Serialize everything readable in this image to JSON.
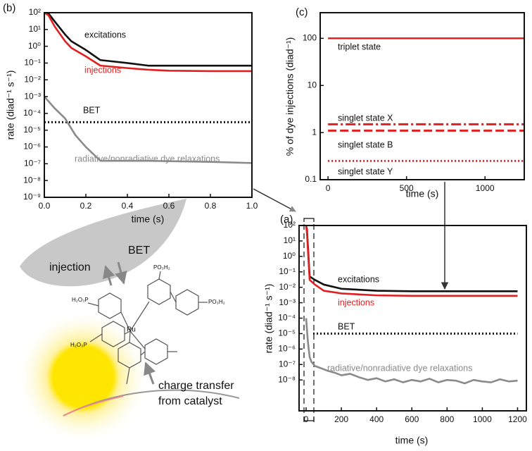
{
  "chart_data": [
    {
      "type": "line",
      "panel_label": "(b)",
      "x_label": "time (s)",
      "y_label": "rate (diad⁻¹ s⁻¹)",
      "log_y": true,
      "xlim": [
        0,
        1
      ],
      "xticks": [
        {
          "value": 0,
          "label": "0.0"
        },
        0.2,
        0.4,
        0.6,
        0.8,
        {
          "value": 1,
          "label": "1.0"
        }
      ],
      "ylim": [
        1e-09,
        100
      ],
      "yticks": [
        {
          "value": 100,
          "label": "10²"
        },
        {
          "value": 10,
          "label": "10¹"
        },
        {
          "value": 1,
          "label": "10⁰"
        },
        {
          "value": 0.1,
          "label": "10⁻¹"
        },
        {
          "value": 0.01,
          "label": "10⁻²"
        },
        {
          "value": 0.001,
          "label": "10⁻³"
        },
        {
          "value": 0.0001,
          "label": "10⁻⁴"
        },
        {
          "value": 1e-05,
          "label": "10⁻⁵"
        },
        {
          "value": 1e-06,
          "label": "10⁻⁶"
        },
        {
          "value": 1e-07,
          "label": "10⁻⁷"
        },
        {
          "value": 1e-08,
          "label": "10⁻⁸"
        },
        {
          "value": 1e-09,
          "label": "10⁻⁹"
        }
      ],
      "series": [
        {
          "name": "excitations",
          "color": "#111111",
          "dash": "solid",
          "x": [
            0,
            0.02,
            0.05,
            0.1,
            0.13,
            0.2,
            0.27,
            0.4,
            0.5,
            0.6,
            0.8,
            1.0
          ],
          "values": [
            100,
            90,
            30,
            5,
            2,
            0.6,
            0.15,
            0.1,
            0.07,
            0.07,
            0.07,
            0.07
          ]
        },
        {
          "name": "injections",
          "color": "#e02020",
          "dash": "solid",
          "x": [
            0,
            0.02,
            0.05,
            0.1,
            0.13,
            0.2,
            0.27,
            0.4,
            0.5,
            0.6,
            0.8,
            1.0
          ],
          "values": [
            100,
            70,
            15,
            2,
            0.8,
            0.25,
            0.07,
            0.05,
            0.04,
            0.035,
            0.033,
            0.033
          ]
        },
        {
          "name": "BET",
          "color": "#111111",
          "dash": "dotted",
          "x": [
            0,
            1
          ],
          "values": [
            3e-05,
            3e-05
          ]
        },
        {
          "name": "radiative/nonradiative dye relaxations",
          "color": "#8a8a8a",
          "dash": "solid",
          "x": [
            0,
            0.05,
            0.1,
            0.15,
            0.2,
            0.27,
            0.5,
            0.8,
            1.0
          ],
          "values": [
            0.001,
            0.0002,
            5e-05,
            5e-06,
            1e-06,
            1.5e-07,
            1.5e-07,
            1.3e-07,
            1.1e-07
          ]
        }
      ]
    },
    {
      "type": "line",
      "panel_label": "(c)",
      "x_label": "time (s)",
      "y_label": "% of dye injections (diad⁻¹)",
      "log_y": true,
      "xlim": [
        -50,
        1250
      ],
      "xticks": [
        0,
        500,
        1000
      ],
      "ylim": [
        0.1,
        350
      ],
      "yticks": [
        0.1,
        1,
        10,
        100
      ],
      "series": [
        {
          "name": "triplet state",
          "color": "#e02020",
          "dash": "solid",
          "x": [
            0,
            1250
          ],
          "values": [
            100,
            100
          ]
        },
        {
          "name": "singlet state X",
          "color": "#e02020",
          "dash": "dashdot",
          "x": [
            0,
            1250
          ],
          "values": [
            1.5,
            1.5
          ]
        },
        {
          "name": "singlet state B",
          "color": "#e02020",
          "dash": "dashed",
          "x": [
            0,
            1250
          ],
          "values": [
            1.1,
            1.1
          ]
        },
        {
          "name": "singlet state Y",
          "color": "#e02020",
          "dash": "dotted",
          "x": [
            0,
            1250
          ],
          "values": [
            0.25,
            0.25
          ]
        }
      ]
    },
    {
      "type": "line",
      "panel_label": "(a)",
      "x_label": "time (s)",
      "y_label": "rate (diad⁻¹ s⁻¹)",
      "log_y": true,
      "xlim": [
        -40,
        1250
      ],
      "xticks": [
        0,
        200,
        400,
        600,
        800,
        1000,
        1200
      ],
      "ylim": [
        1e-10,
        100
      ],
      "yticks": [
        {
          "value": 100,
          "label": "10²"
        },
        {
          "value": 10,
          "label": "10¹"
        },
        {
          "value": 1,
          "label": "10⁰"
        },
        {
          "value": 0.1,
          "label": "10⁻¹"
        },
        {
          "value": 0.01,
          "label": "10⁻²"
        },
        {
          "value": 0.001,
          "label": "10⁻³"
        },
        {
          "value": 0.0001,
          "label": "10⁻⁴"
        },
        {
          "value": 1e-05,
          "label": "10⁻⁵"
        },
        {
          "value": 1e-06,
          "label": "10⁻⁶"
        },
        {
          "value": 1e-07,
          "label": "10⁻⁷"
        },
        {
          "value": 1e-08,
          "label": "10⁻⁸"
        }
      ],
      "series": [
        {
          "name": "excitations",
          "color": "#111111",
          "dash": "solid",
          "x": [
            0,
            5,
            20,
            50,
            100,
            200,
            400,
            600,
            800,
            1000,
            1200
          ],
          "values": [
            100,
            50,
            0.05,
            0.03,
            0.015,
            0.008,
            0.006,
            0.0055,
            0.0055,
            0.0055,
            0.0055
          ]
        },
        {
          "name": "injections",
          "color": "#e02020",
          "dash": "solid",
          "x": [
            0,
            5,
            20,
            50,
            100,
            200,
            400,
            600,
            800,
            1000,
            1200
          ],
          "values": [
            100,
            30,
            0.03,
            0.015,
            0.006,
            0.004,
            0.003,
            0.0028,
            0.0028,
            0.0028,
            0.0028
          ]
        },
        {
          "name": "BET",
          "color": "#111111",
          "dash": "dotted",
          "x": [
            40,
            1200
          ],
          "values": [
            1e-05,
            1e-05
          ]
        },
        {
          "name": "radiative/nonradiative dye relaxations",
          "color": "#8a8a8a",
          "dash": "solid",
          "x": [
            0,
            10,
            20,
            30,
            50,
            80,
            120,
            160,
            200,
            250,
            300,
            350,
            400,
            450,
            500,
            550,
            600,
            650,
            700,
            750,
            800,
            850,
            900,
            950,
            1000,
            1050,
            1100,
            1150,
            1200
          ],
          "values": [
            0.0001,
            3e-06,
            3e-07,
            1.5e-07,
            8e-08,
            6e-08,
            4e-08,
            3e-08,
            2e-08,
            2.5e-08,
            1.5e-08,
            1e-08,
            1.3e-08,
            8e-09,
            1.1e-08,
            7e-09,
            1e-08,
            8e-09,
            1.2e-08,
            7e-09,
            1e-08,
            9e-09,
            6e-09,
            1e-08,
            8e-09,
            7e-09,
            1.1e-08,
            8e-09,
            9e-09
          ]
        }
      ]
    }
  ],
  "diagram": {
    "injection": "injection",
    "bet": "BET",
    "charge_transfer": [
      "charge transfer",
      "from catalyst"
    ],
    "metal": "Ru",
    "groups": [
      "PO₃H₂",
      "PO₃H₂",
      "H₂O₃P",
      "H₂O₃P"
    ]
  }
}
